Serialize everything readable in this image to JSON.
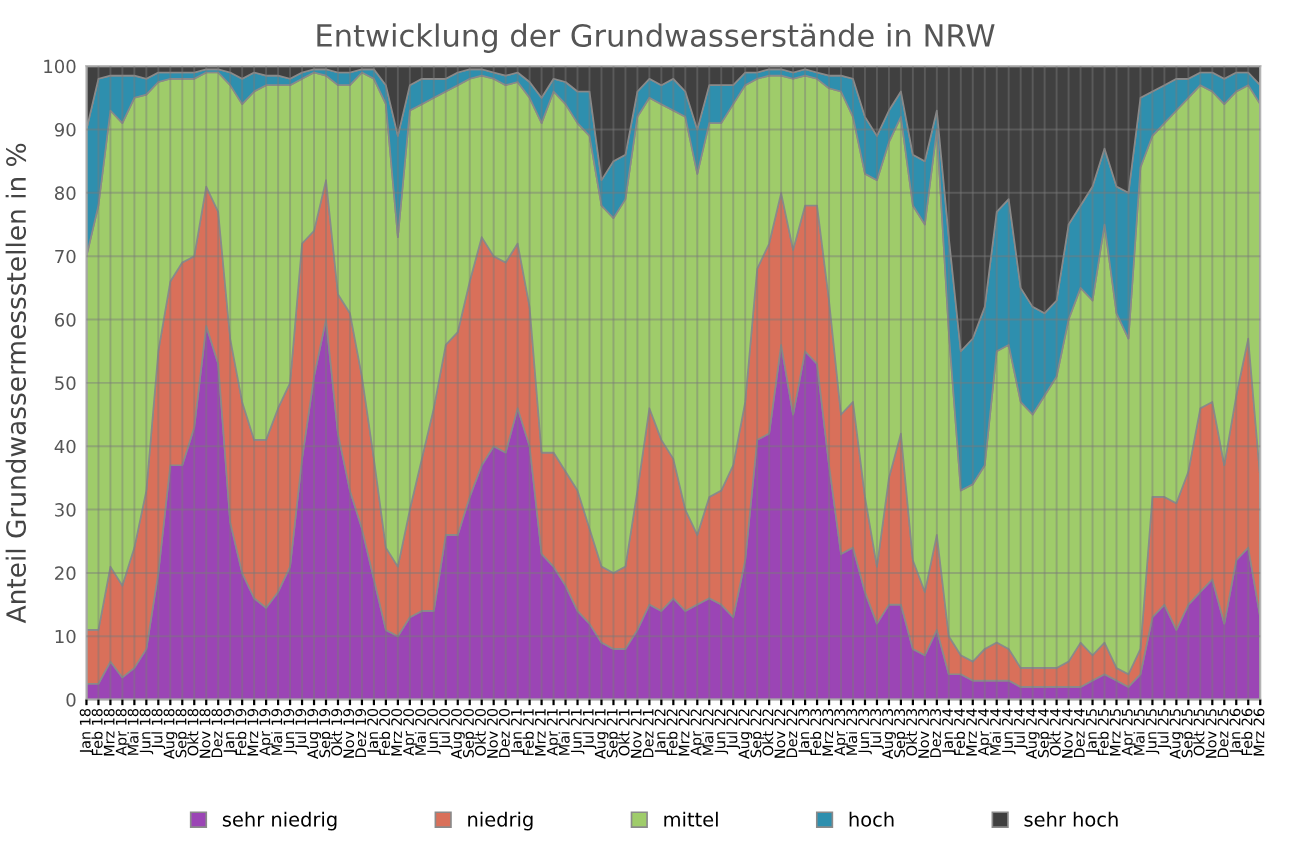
{
  "chart_data": {
    "type": "area",
    "stacked": true,
    "title": "Entwicklung der Grundwasserstände in NRW",
    "ylabel": "Anteil Grundwassermessstellen in %",
    "categories": [
      "Jan 18",
      "Feb 18",
      "Mrz 18",
      "Apr 18",
      "Mai 18",
      "Jun 18",
      "Jul 18",
      "Aug 18",
      "Sep 18",
      "Okt 18",
      "Nov 18",
      "Dez 18",
      "Jan 19",
      "Feb 19",
      "Mrz 19",
      "Apr 19",
      "Mai 19",
      "Jun 19",
      "Jul 19",
      "Aug 19",
      "Sep 19",
      "Okt 19",
      "Nov 19",
      "Dez 19",
      "Jan 20",
      "Feb 20",
      "Mrz 20",
      "Apr 20",
      "Mai 20",
      "Jun 20",
      "Jul 20",
      "Aug 20",
      "Sep 20",
      "Okt 20",
      "Nov 20",
      "Dez 20",
      "Jan 21",
      "Feb 21",
      "Mrz 21",
      "Apr 21",
      "Mai 21",
      "Jun 21",
      "Jul 21",
      "Aug 21",
      "Sep 21",
      "Okt 21",
      "Nov 21",
      "Dez 21",
      "Jan 22",
      "Feb 22",
      "Mrz 22",
      "Apr 22",
      "Mai 22",
      "Jun 22",
      "Jul 22",
      "Aug 22",
      "Sep 22",
      "Okt 22",
      "Nov 22",
      "Dez 22",
      "Jan 23",
      "Feb 23",
      "Mrz 23",
      "Apr 23",
      "Mai 23",
      "Jun 23",
      "Jul 23",
      "Aug 23",
      "Sep 23",
      "Okt 23",
      "Nov 23",
      "Dez 23",
      "Jan 24",
      "Feb 24",
      "Mrz 24",
      "Apr 24",
      "Mai 24",
      "Jun 24",
      "Jul 24",
      "Aug 24",
      "Sep 24",
      "Okt 24",
      "Nov 24",
      "Dez 24",
      "Jan 25",
      "Feb 25",
      "Mrz 25",
      "Apr 25",
      "Mai 25",
      "Jun 25",
      "Jul 25",
      "Aug 25",
      "Sep 25",
      "Okt 25",
      "Nov 25",
      "Dez 25",
      "Jan 26",
      "Feb 26",
      "Mrz 26"
    ],
    "series": [
      {
        "name": "sehr niedrig",
        "color": "#9b45b5",
        "values": [
          2.5,
          2.5,
          6,
          3.5,
          5,
          8,
          20,
          37,
          37,
          43,
          59,
          53,
          28,
          20,
          16,
          14.5,
          17,
          21,
          38,
          51,
          60,
          42,
          33,
          27,
          19,
          11,
          10,
          13,
          14,
          14,
          26,
          26,
          32,
          37,
          40,
          39,
          46,
          40,
          23,
          21,
          18,
          14,
          12,
          9,
          8,
          8,
          11,
          15,
          14,
          16,
          14,
          15,
          16,
          15,
          13,
          22,
          41,
          42,
          56,
          45,
          55,
          53,
          37,
          23,
          24,
          17,
          12,
          15,
          15,
          8,
          7,
          11,
          4,
          4,
          3,
          3,
          3,
          3,
          2,
          2,
          2,
          2,
          2,
          2,
          3,
          4,
          3,
          2,
          4,
          13,
          15,
          11,
          15,
          17,
          19,
          12,
          22,
          24,
          13
        ]
      },
      {
        "name": "niedrig",
        "color": "#d9705a",
        "values": [
          8.5,
          8.5,
          15,
          14.5,
          19,
          25,
          35,
          29,
          32,
          27,
          22,
          24,
          29,
          27,
          25,
          26.5,
          29,
          29,
          34,
          23,
          22,
          22,
          28,
          24,
          19,
          13,
          11,
          17,
          24,
          32,
          30,
          32,
          34,
          36,
          30,
          30,
          26,
          22,
          16,
          18,
          18,
          19,
          15,
          12,
          12,
          13,
          22,
          31,
          27,
          22,
          16,
          11,
          16,
          18,
          24,
          25,
          27,
          30,
          24,
          26,
          23,
          25,
          26,
          22,
          23,
          15,
          9,
          20,
          27,
          14,
          10,
          15,
          6,
          3,
          3,
          5,
          6,
          5,
          3,
          3,
          3,
          3,
          4,
          7,
          4,
          5,
          2,
          2,
          4,
          19,
          17,
          20,
          21,
          29,
          28,
          25,
          26,
          33,
          22
        ]
      },
      {
        "name": "mittel",
        "color": "#9fcc6a",
        "values": [
          59,
          67,
          72,
          73,
          71,
          62.5,
          42.5,
          32,
          29,
          28,
          18,
          22,
          40,
          47,
          55,
          56,
          51,
          47,
          26,
          25,
          16.5,
          33,
          36,
          48,
          60,
          70,
          52,
          63,
          56,
          49,
          40,
          39,
          32,
          25.5,
          28,
          28,
          25.5,
          33,
          52,
          57,
          58,
          58,
          62,
          57,
          56,
          58,
          59,
          49,
          53,
          55,
          62,
          57,
          59,
          58,
          57,
          50,
          30,
          26.5,
          18.5,
          27,
          20.5,
          20,
          33.5,
          51,
          45,
          51,
          61,
          53,
          50,
          56,
          58,
          64,
          48,
          26,
          28,
          29,
          46,
          48,
          42,
          40,
          43,
          46,
          54,
          56,
          56,
          66,
          56,
          53,
          76,
          57,
          59,
          62,
          59,
          51,
          49,
          57,
          48,
          40,
          59
        ]
      },
      {
        "name": "hoch",
        "color": "#2e8fae",
        "values": [
          20,
          20,
          5.5,
          7.5,
          3.5,
          2.5,
          1.5,
          1,
          1,
          1,
          0.5,
          0.5,
          2,
          4,
          3,
          1.5,
          1.5,
          1,
          1,
          0.5,
          1,
          2,
          2,
          0.5,
          1.5,
          3,
          16,
          4,
          4,
          3,
          2,
          2,
          1.5,
          1,
          1,
          1.5,
          1.5,
          2.5,
          4,
          2,
          3.5,
          5,
          7,
          4,
          9,
          7,
          4,
          3,
          3,
          5,
          4,
          7,
          6,
          6,
          3,
          2,
          1,
          1,
          1,
          1,
          1,
          1,
          2,
          2.5,
          6,
          9,
          7,
          5,
          4,
          8,
          10,
          3,
          15,
          22,
          23,
          25,
          22,
          23,
          18,
          17,
          13,
          12,
          15,
          13,
          18,
          12,
          20,
          23,
          11,
          7,
          6,
          5,
          3,
          2,
          3,
          4,
          3,
          2,
          3
        ]
      },
      {
        "name": "sehr hoch",
        "color": "#404040",
        "values": [
          10,
          2,
          1.5,
          1.5,
          1.5,
          2,
          1,
          1,
          1,
          1,
          0.5,
          0.5,
          1,
          2,
          1,
          1.5,
          1.5,
          2,
          1,
          0.5,
          0.5,
          1,
          1,
          0.5,
          0.5,
          3,
          11,
          3,
          2,
          2,
          2,
          1,
          0.5,
          0.5,
          1,
          1.5,
          1,
          2.5,
          5,
          2,
          2.5,
          4,
          4,
          18,
          15,
          14,
          4,
          2,
          3,
          2,
          4,
          10,
          3,
          3,
          3,
          1,
          1,
          0.5,
          0.5,
          1,
          0.5,
          1,
          1.5,
          1.5,
          2,
          8,
          11,
          7,
          4,
          14,
          15,
          7,
          27,
          45,
          43,
          38,
          23,
          21,
          35,
          38,
          39,
          37,
          25,
          22,
          19,
          13,
          19,
          20,
          5,
          4,
          3,
          2,
          2,
          1,
          1,
          2,
          1,
          1,
          3
        ]
      }
    ],
    "ylim": [
      0,
      100
    ],
    "yticks": [
      0,
      10,
      20,
      30,
      40,
      50,
      60,
      70,
      80,
      90,
      100
    ],
    "grid": true,
    "legend": "bottom"
  }
}
